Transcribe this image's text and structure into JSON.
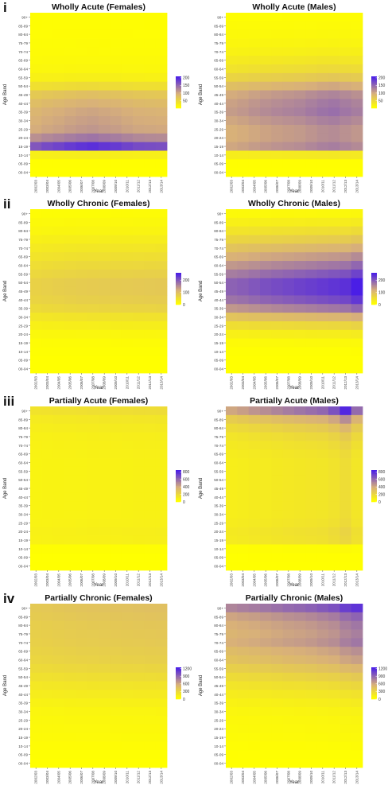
{
  "figure": {
    "age_band_axis_label": "Age Band",
    "year_axis_label": "Year",
    "age_bands": [
      "90+",
      "85-89",
      "80-84",
      "75-79",
      "70-74",
      "65-69",
      "60-64",
      "55-59",
      "50-54",
      "45-49",
      "40-44",
      "35-39",
      "30-34",
      "25-29",
      "20-24",
      "15-19",
      "10-14",
      "05-09",
      "00-04"
    ],
    "years": [
      "2002/03",
      "2003/04",
      "2004/05",
      "2005/06",
      "2006/07",
      "2007/08",
      "2008/09",
      "2009/10",
      "2010/11",
      "2011/12",
      "2012/13",
      "2013/14"
    ],
    "colors": {
      "low": "#ffff00",
      "mid": "#d8b07a",
      "high": "#4a1ee6"
    },
    "rows": [
      {
        "roman": "i"
      },
      {
        "roman": "ii"
      },
      {
        "roman": "iii"
      },
      {
        "roman": "iv"
      }
    ]
  },
  "chart_data": [
    {
      "type": "heatmap",
      "title": "Wholly Acute (Females)",
      "legend_ticks": [
        "200",
        "150",
        "100",
        "50"
      ],
      "scale_max": 210,
      "profile": [
        2,
        2,
        3,
        4,
        5,
        7,
        10,
        18,
        40,
        70,
        85,
        95,
        100,
        105,
        130,
        180,
        20,
        1,
        0
      ],
      "year_factors": [
        0.92,
        0.97,
        1.0,
        1.04,
        1.07,
        1.09,
        1.06,
        1.04,
        1.0,
        0.97,
        0.96,
        0.95
      ]
    },
    {
      "type": "heatmap",
      "title": "Wholly Acute (Males)",
      "legend_ticks": [
        "200",
        "150",
        "100",
        "50"
      ],
      "scale_max": 210,
      "profile": [
        3,
        5,
        8,
        12,
        18,
        28,
        40,
        60,
        90,
        115,
        125,
        130,
        120,
        110,
        110,
        120,
        25,
        1,
        0
      ],
      "year_factors": [
        0.85,
        0.88,
        0.92,
        0.95,
        0.98,
        1.0,
        1.02,
        1.06,
        1.1,
        1.12,
        1.08,
        1.04
      ]
    },
    {
      "type": "heatmap",
      "title": "Wholly Chronic (Females)",
      "legend_ticks": [
        "200",
        "100",
        "0"
      ],
      "scale_max": 260,
      "profile": [
        5,
        10,
        15,
        25,
        35,
        45,
        55,
        65,
        75,
        75,
        70,
        60,
        40,
        25,
        12,
        5,
        2,
        0,
        0
      ],
      "year_factors": [
        0.9,
        0.93,
        0.96,
        0.99,
        1.01,
        1.02,
        1.03,
        1.04,
        1.05,
        1.06,
        1.07,
        1.08
      ]
    },
    {
      "type": "heatmap",
      "title": "Wholly Chronic (Males)",
      "legend_ticks": [
        "200",
        "100",
        "0"
      ],
      "scale_max": 260,
      "profile": [
        10,
        25,
        45,
        70,
        100,
        130,
        160,
        190,
        220,
        220,
        200,
        160,
        100,
        55,
        25,
        8,
        2,
        0,
        0
      ],
      "year_factors": [
        0.88,
        0.9,
        0.93,
        0.96,
        0.98,
        1.0,
        1.02,
        1.04,
        1.06,
        1.08,
        1.1,
        1.18
      ]
    },
    {
      "type": "heatmap",
      "title": "Partially Acute (Females)",
      "legend_ticks": [
        "800",
        "600",
        "400",
        "200",
        "0"
      ],
      "scale_max": 850,
      "profile": [
        150,
        110,
        90,
        75,
        70,
        65,
        60,
        60,
        60,
        60,
        60,
        60,
        60,
        65,
        75,
        70,
        10,
        2,
        0
      ],
      "year_factors": [
        0.9,
        0.93,
        0.96,
        0.98,
        1.0,
        1.02,
        1.04,
        1.05,
        1.07,
        1.09,
        1.1,
        1.12
      ]
    },
    {
      "type": "heatmap",
      "title": "Partially Acute (Males)",
      "legend_ticks": [
        "800",
        "600",
        "400",
        "200",
        "0"
      ],
      "scale_max": 850,
      "profile": [
        550,
        330,
        230,
        170,
        140,
        120,
        110,
        110,
        110,
        110,
        110,
        110,
        110,
        120,
        140,
        130,
        15,
        3,
        0
      ],
      "year_factors": [
        0.75,
        0.8,
        0.86,
        0.9,
        0.95,
        1.0,
        1.04,
        1.08,
        1.12,
        1.25,
        1.5,
        1.1
      ]
    },
    {
      "type": "heatmap",
      "title": "Partially Chronic (Females)",
      "legend_ticks": [
        "1200",
        "900",
        "600",
        "300",
        "0"
      ],
      "scale_max": 1250,
      "profile": [
        420,
        400,
        380,
        370,
        360,
        340,
        320,
        280,
        230,
        180,
        140,
        100,
        70,
        55,
        45,
        35,
        20,
        8,
        2
      ],
      "year_factors": [
        0.92,
        0.94,
        0.96,
        0.98,
        1.0,
        1.01,
        1.02,
        1.03,
        1.04,
        1.05,
        1.06,
        1.07
      ]
    },
    {
      "type": "heatmap",
      "title": "Partially Chronic (Males)",
      "legend_ticks": [
        "1200",
        "900",
        "600",
        "300",
        "0"
      ],
      "scale_max": 1250,
      "profile": [
        900,
        720,
        650,
        620,
        650,
        560,
        500,
        400,
        300,
        220,
        160,
        110,
        75,
        55,
        45,
        35,
        20,
        8,
        2
      ],
      "year_factors": [
        0.85,
        0.88,
        0.9,
        0.93,
        0.96,
        0.99,
        1.01,
        1.04,
        1.08,
        1.12,
        1.22,
        1.28
      ]
    }
  ]
}
